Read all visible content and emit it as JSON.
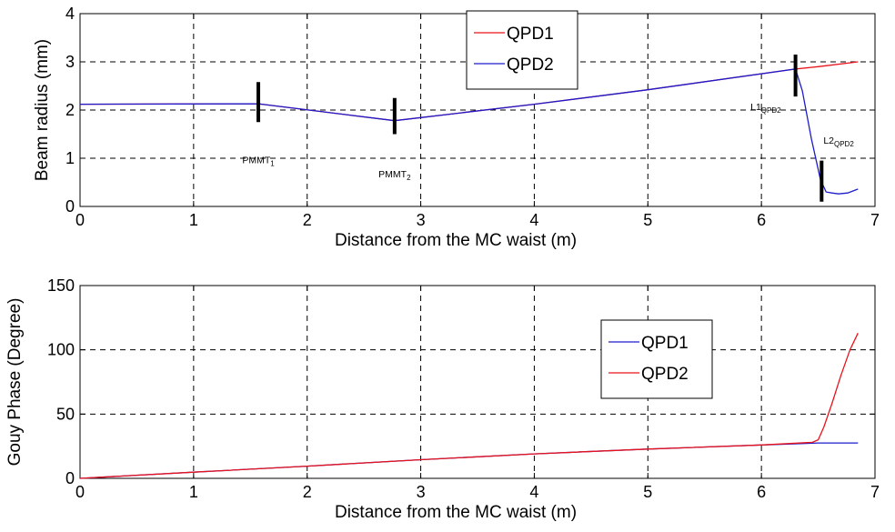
{
  "chart_data": [
    {
      "type": "line",
      "xlabel": "Distance from the MC waist (m)",
      "ylabel": "Beam radius (mm)",
      "xlim": [
        0,
        7
      ],
      "ylim": [
        0,
        4
      ],
      "xticks": [
        "0",
        "1",
        "2",
        "3",
        "4",
        "5",
        "6",
        "7"
      ],
      "yticks": [
        "0",
        "1",
        "2",
        "3",
        "4"
      ],
      "grid": true,
      "legend_position": "top-center",
      "series": [
        {
          "name": "QPD1",
          "color": "#e8141c",
          "points": [
            [
              0,
              2.12
            ],
            [
              1.57,
              2.13
            ],
            [
              2.77,
              1.78
            ],
            [
              4.0,
              2.12
            ],
            [
              5.0,
              2.42
            ],
            [
              6.3,
              2.85
            ],
            [
              6.5,
              2.9
            ],
            [
              6.85,
              3.0
            ]
          ]
        },
        {
          "name": "QPD2",
          "color": "#1c1ccc",
          "points": [
            [
              0,
              2.12
            ],
            [
              1.57,
              2.13
            ],
            [
              2.77,
              1.78
            ],
            [
              4.0,
              2.12
            ],
            [
              5.0,
              2.42
            ],
            [
              6.3,
              2.85
            ],
            [
              6.36,
              2.4
            ],
            [
              6.44,
              1.4
            ],
            [
              6.52,
              0.55
            ],
            [
              6.57,
              0.3
            ],
            [
              6.62,
              0.28
            ],
            [
              6.68,
              0.26
            ],
            [
              6.76,
              0.28
            ],
            [
              6.85,
              0.36
            ]
          ]
        }
      ],
      "markers": [
        {
          "x": 1.57,
          "y_low": 1.75,
          "y_high": 2.58,
          "label": "PMMT",
          "sub": "1",
          "label_y": 0.9,
          "label_side": "below"
        },
        {
          "x": 2.77,
          "y_low": 1.5,
          "y_high": 2.25,
          "label": "PMMT",
          "sub": "2",
          "label_y": 0.6,
          "label_side": "below"
        },
        {
          "x": 6.3,
          "y_low": 2.28,
          "y_high": 3.15,
          "label": "L1",
          "sub": "QPD2",
          "label_y": 2.0,
          "label_side": "left"
        },
        {
          "x": 6.53,
          "y_low": 0.1,
          "y_high": 0.95,
          "label": "L2",
          "sub": "QPD2",
          "label_y": 1.3,
          "label_side": "right"
        }
      ]
    },
    {
      "type": "line",
      "xlabel": "Distance from the MC waist (m)",
      "ylabel": "Gouy Phase (Degree)",
      "xlim": [
        0,
        7
      ],
      "ylim": [
        0,
        150
      ],
      "xticks": [
        "0",
        "1",
        "2",
        "3",
        "4",
        "5",
        "6",
        "7"
      ],
      "yticks": [
        "0",
        "50",
        "100",
        "150"
      ],
      "grid": true,
      "legend_position": "right",
      "series": [
        {
          "name": "QPD1",
          "color": "#1c1ccc",
          "points": [
            [
              0,
              0
            ],
            [
              1,
              4.8
            ],
            [
              2,
              9.5
            ],
            [
              3,
              14.5
            ],
            [
              4,
              19.0
            ],
            [
              5,
              22.8
            ],
            [
              6,
              26.0
            ],
            [
              6.5,
              27.5
            ],
            [
              6.85,
              27.5
            ]
          ]
        },
        {
          "name": "QPD2",
          "color": "#e8141c",
          "points": [
            [
              0,
              0
            ],
            [
              1,
              4.8
            ],
            [
              2,
              9.5
            ],
            [
              3,
              14.5
            ],
            [
              4,
              19.0
            ],
            [
              5,
              22.8
            ],
            [
              6,
              26.0
            ],
            [
              6.45,
              28.0
            ],
            [
              6.5,
              30.0
            ],
            [
              6.55,
              40.0
            ],
            [
              6.62,
              58.0
            ],
            [
              6.7,
              80.0
            ],
            [
              6.78,
              100.0
            ],
            [
              6.85,
              113.0
            ]
          ]
        }
      ]
    }
  ]
}
